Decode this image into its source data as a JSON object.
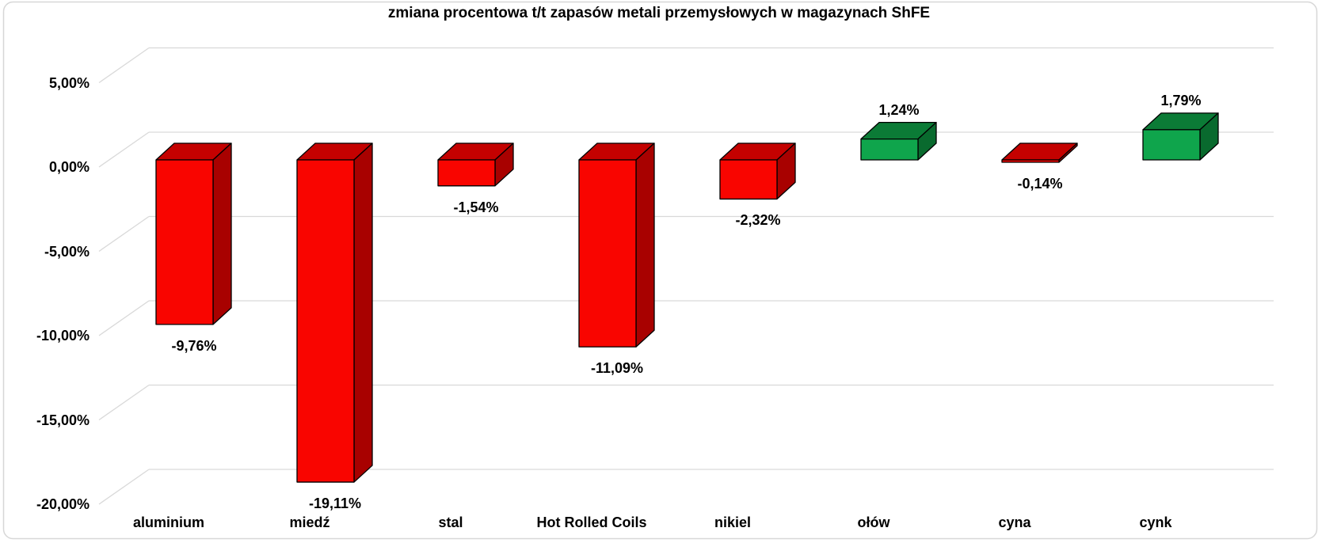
{
  "chart_data": {
    "type": "bar",
    "style": "3d-column",
    "title": "zmiana procentowa t/t zapasów metali przemysłowych w magazynach ShFE",
    "xlabel": "",
    "ylabel": "",
    "categories": [
      "aluminium",
      "miedź",
      "stal",
      "Hot Rolled Coils",
      "nikiel",
      "ołów",
      "cyna",
      "cynk"
    ],
    "values": [
      -9.76,
      -19.11,
      -1.54,
      -11.09,
      -2.32,
      1.24,
      -0.14,
      1.79
    ],
    "value_labels": [
      "-9,76%",
      "-19,11%",
      "-1,54%",
      "-11,09%",
      "-2,32%",
      "1,24%",
      "-0,14%",
      "1,79%"
    ],
    "y_ticks": [
      {
        "value": 5,
        "label": "5,00%"
      },
      {
        "value": 0,
        "label": "0,00%"
      },
      {
        "value": -5,
        "label": "-5,00%"
      },
      {
        "value": -10,
        "label": "-10,00%"
      },
      {
        "value": -15,
        "label": "-15,00%"
      },
      {
        "value": -20,
        "label": "-20,00%"
      }
    ],
    "ylim": [
      -20,
      5
    ],
    "grid": true,
    "legend": false,
    "colors": {
      "negative_front": "#F90500",
      "negative_top": "#C40100",
      "negative_side": "#A80100",
      "positive_front": "#0FA54C",
      "positive_top": "#0B7B36",
      "positive_side": "#096A2E",
      "bar_outline": "#000000",
      "gridline": "#D9D9D9",
      "chart_border": "#D7D7D7",
      "text": "#000000",
      "background": "#FFFFFF"
    }
  }
}
